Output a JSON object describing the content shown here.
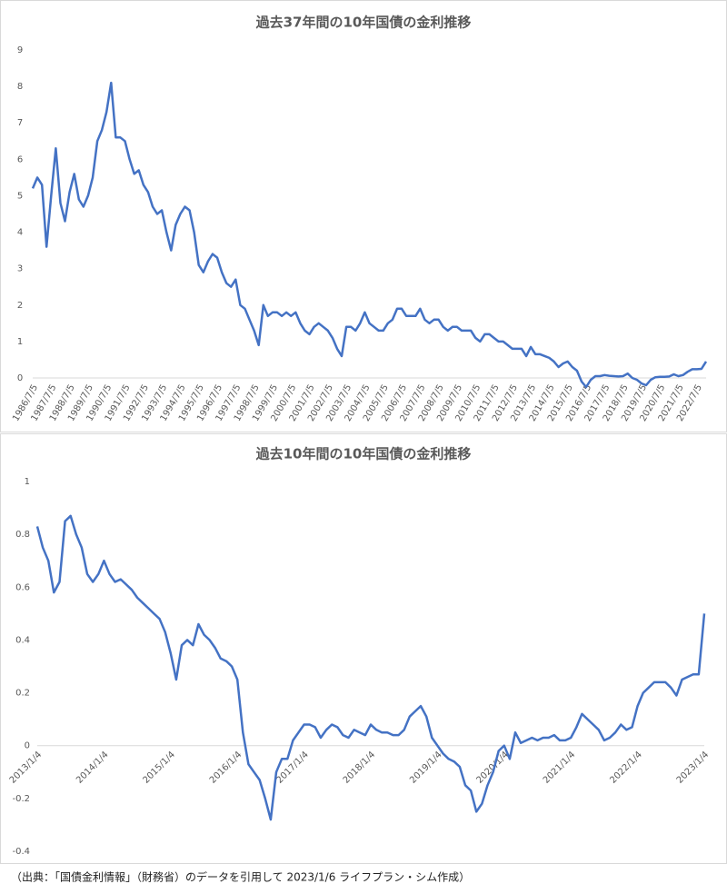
{
  "chart_data": [
    {
      "type": "line",
      "title": "過去37年間の10年国債の金利推移",
      "categories": [
        "1986/7/5",
        null,
        null,
        null,
        "1987/7/5",
        null,
        null,
        null,
        "1988/7/5",
        null,
        null,
        null,
        "1989/7/5",
        null,
        null,
        null,
        "1990/7/5",
        null,
        null,
        null,
        "1991/7/5",
        null,
        null,
        null,
        "1992/7/5",
        null,
        null,
        null,
        "1993/7/5",
        null,
        null,
        null,
        "1994/7/5",
        null,
        null,
        null,
        "1995/7/5",
        null,
        null,
        null,
        "1996/7/5",
        null,
        null,
        null,
        "1997/7/5",
        null,
        null,
        null,
        "1998/7/5",
        null,
        null,
        null,
        "1999/7/5",
        null,
        null,
        null,
        "2000/7/5",
        null,
        null,
        null,
        "2001/7/5",
        null,
        null,
        null,
        "2002/7/5",
        null,
        null,
        null,
        "2003/7/5",
        null,
        null,
        null,
        "2004/7/5",
        null,
        null,
        null,
        "2005/7/5",
        null,
        null,
        null,
        "2006/7/5",
        null,
        null,
        null,
        "2007/7/5",
        null,
        null,
        null,
        "2008/7/5",
        null,
        null,
        null,
        "2009/7/5",
        null,
        null,
        null,
        "2010/7/5",
        null,
        null,
        null,
        "2011/7/5",
        null,
        null,
        null,
        "2012/7/5",
        null,
        null,
        null,
        "2013/7/5",
        null,
        null,
        null,
        "2014/7/5",
        null,
        null,
        null,
        "2015/7/5",
        null,
        null,
        null,
        "2016/7/5",
        null,
        null,
        null,
        "2017/7/5",
        null,
        null,
        null,
        "2018/7/5",
        null,
        null,
        null,
        "2019/7/5",
        null,
        null,
        null,
        "2020/7/5",
        null,
        null,
        null,
        "2021/7/5",
        null,
        null,
        null,
        "2022/7/5",
        null,
        null
      ],
      "values": [
        5.2,
        5.5,
        5.3,
        3.6,
        5.0,
        6.3,
        4.8,
        4.3,
        5.1,
        5.6,
        4.9,
        4.7,
        5.0,
        5.5,
        6.5,
        6.8,
        7.3,
        8.1,
        6.6,
        6.6,
        6.5,
        6.0,
        5.6,
        5.7,
        5.3,
        5.1,
        4.7,
        4.5,
        4.6,
        4.0,
        3.5,
        4.2,
        4.5,
        4.7,
        4.6,
        4.0,
        3.1,
        2.9,
        3.2,
        3.4,
        3.3,
        2.9,
        2.6,
        2.5,
        2.7,
        2.0,
        1.9,
        1.6,
        1.3,
        0.9,
        2.0,
        1.7,
        1.8,
        1.8,
        1.7,
        1.8,
        1.7,
        1.8,
        1.5,
        1.3,
        1.2,
        1.4,
        1.5,
        1.4,
        1.3,
        1.1,
        0.8,
        0.6,
        1.4,
        1.4,
        1.3,
        1.5,
        1.8,
        1.5,
        1.4,
        1.3,
        1.3,
        1.5,
        1.6,
        1.9,
        1.9,
        1.7,
        1.7,
        1.7,
        1.9,
        1.6,
        1.5,
        1.6,
        1.6,
        1.4,
        1.3,
        1.4,
        1.4,
        1.3,
        1.3,
        1.3,
        1.1,
        1.0,
        1.2,
        1.2,
        1.1,
        1.0,
        1.0,
        0.9,
        0.8,
        0.8,
        0.8,
        0.6,
        0.85,
        0.65,
        0.65,
        0.6,
        0.55,
        0.45,
        0.3,
        0.4,
        0.45,
        0.3,
        0.2,
        -0.1,
        -0.25,
        -0.05,
        0.05,
        0.05,
        0.08,
        0.06,
        0.05,
        0.04,
        0.05,
        0.12,
        0.0,
        -0.05,
        -0.15,
        -0.2,
        -0.05,
        0.02,
        0.03,
        0.03,
        0.04,
        0.1,
        0.05,
        0.08,
        0.17,
        0.24,
        0.24,
        0.25,
        0.45
      ],
      "color": "#4472c4",
      "ylim": [
        0,
        9
      ],
      "yticks": [
        0,
        1,
        2,
        3,
        4,
        5,
        6,
        7,
        8,
        9
      ],
      "grid": false
    },
    {
      "type": "line",
      "title": "過去10年間の10年国債の金利推移",
      "categories": [
        "2013/1/4",
        null,
        null,
        null,
        null,
        null,
        null,
        null,
        null,
        null,
        null,
        null,
        "2014/1/4",
        null,
        null,
        null,
        null,
        null,
        null,
        null,
        null,
        null,
        null,
        null,
        "2015/1/4",
        null,
        null,
        null,
        null,
        null,
        null,
        null,
        null,
        null,
        null,
        null,
        "2016/1/4",
        null,
        null,
        null,
        null,
        null,
        null,
        null,
        null,
        null,
        null,
        null,
        "2017/1/4",
        null,
        null,
        null,
        null,
        null,
        null,
        null,
        null,
        null,
        null,
        null,
        "2018/1/4",
        null,
        null,
        null,
        null,
        null,
        null,
        null,
        null,
        null,
        null,
        null,
        "2019/1/4",
        null,
        null,
        null,
        null,
        null,
        null,
        null,
        null,
        null,
        null,
        null,
        "2020/1/4",
        null,
        null,
        null,
        null,
        null,
        null,
        null,
        null,
        null,
        null,
        null,
        "2021/1/4",
        null,
        null,
        null,
        null,
        null,
        null,
        null,
        null,
        null,
        null,
        null,
        "2022/1/4",
        null,
        null,
        null,
        null,
        null,
        null,
        null,
        null,
        null,
        null,
        null,
        "2023/1/4"
      ],
      "values": [
        0.83,
        0.75,
        0.7,
        0.58,
        0.62,
        0.85,
        0.87,
        0.8,
        0.75,
        0.65,
        0.62,
        0.65,
        0.7,
        0.65,
        0.62,
        0.63,
        0.61,
        0.59,
        0.56,
        0.54,
        0.52,
        0.5,
        0.48,
        0.43,
        0.35,
        0.25,
        0.38,
        0.4,
        0.38,
        0.46,
        0.42,
        0.4,
        0.37,
        0.33,
        0.32,
        0.3,
        0.25,
        0.05,
        -0.07,
        -0.1,
        -0.13,
        -0.2,
        -0.28,
        -0.1,
        -0.05,
        -0.05,
        0.02,
        0.05,
        0.08,
        0.08,
        0.07,
        0.03,
        0.06,
        0.08,
        0.07,
        0.04,
        0.03,
        0.06,
        0.05,
        0.04,
        0.08,
        0.06,
        0.05,
        0.05,
        0.04,
        0.04,
        0.06,
        0.11,
        0.13,
        0.15,
        0.11,
        0.03,
        0.0,
        -0.03,
        -0.05,
        -0.06,
        -0.08,
        -0.15,
        -0.17,
        -0.25,
        -0.22,
        -0.15,
        -0.1,
        -0.02,
        0.0,
        -0.05,
        0.05,
        0.01,
        0.02,
        0.03,
        0.02,
        0.03,
        0.03,
        0.04,
        0.02,
        0.02,
        0.03,
        0.07,
        0.12,
        0.1,
        0.08,
        0.06,
        0.02,
        0.03,
        0.05,
        0.08,
        0.06,
        0.07,
        0.15,
        0.2,
        0.22,
        0.24,
        0.24,
        0.24,
        0.22,
        0.19,
        0.25,
        0.26,
        0.27,
        0.27,
        0.5
      ],
      "color": "#4472c4",
      "ylim": [
        -0.4,
        1
      ],
      "yticks": [
        -0.4,
        -0.2,
        0,
        0.2,
        0.4,
        0.6,
        0.8,
        1
      ],
      "grid": false
    }
  ],
  "source": "（出典：「国債金利情報」（財務省）のデータを引用して 2023/1/6 ライフプラン・シム作成）"
}
